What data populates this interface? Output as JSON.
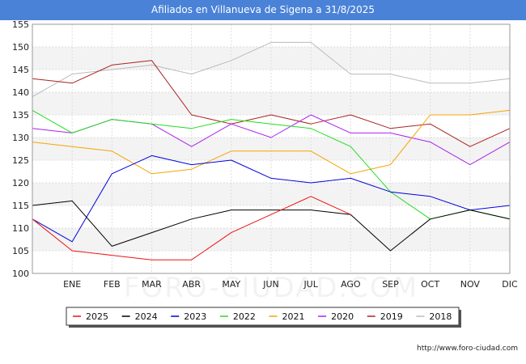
{
  "chart_data": {
    "type": "line",
    "title": "Afiliados en Villanueva de Sigena a 31/8/2025",
    "xlabel": "",
    "ylabel": "",
    "categories": [
      "",
      "ENE",
      "FEB",
      "MAR",
      "ABR",
      "MAY",
      "JUN",
      "JUL",
      "AGO",
      "SEP",
      "OCT",
      "NOV",
      "DIC"
    ],
    "ylim": [
      100,
      155
    ],
    "yticks": [
      100,
      105,
      110,
      115,
      120,
      125,
      130,
      135,
      140,
      145,
      150,
      155
    ],
    "grid": true,
    "legend_position": "bottom",
    "series": [
      {
        "name": "2025",
        "color": "#ee1111",
        "values": [
          112,
          105,
          104,
          103,
          103,
          109,
          113,
          117,
          113,
          null,
          null,
          null,
          null
        ]
      },
      {
        "name": "2024",
        "color": "#000000",
        "values": [
          115,
          116,
          106,
          109,
          112,
          114,
          114,
          114,
          113,
          105,
          112,
          114,
          112
        ]
      },
      {
        "name": "2023",
        "color": "#0000dd",
        "values": [
          112,
          107,
          122,
          126,
          124,
          125,
          121,
          120,
          121,
          118,
          117,
          114,
          115
        ]
      },
      {
        "name": "2022",
        "color": "#22dd22",
        "values": [
          136,
          131,
          134,
          133,
          132,
          134,
          133,
          132,
          128,
          118,
          112,
          114,
          112
        ]
      },
      {
        "name": "2021",
        "color": "#f5a500",
        "values": [
          129,
          128,
          127,
          122,
          123,
          127,
          127,
          127,
          122,
          124,
          135,
          135,
          136
        ]
      },
      {
        "name": "2020",
        "color": "#aa22ee",
        "values": [
          132,
          131,
          134,
          133,
          128,
          133,
          130,
          135,
          131,
          131,
          129,
          124,
          129
        ]
      },
      {
        "name": "2019",
        "color": "#aa2222",
        "values": [
          143,
          142,
          146,
          147,
          135,
          133,
          135,
          133,
          135,
          132,
          133,
          128,
          132
        ]
      },
      {
        "name": "2018",
        "color": "#bbbbbb",
        "values": [
          139,
          144,
          145,
          146,
          144,
          147,
          151,
          151,
          144,
          144,
          142,
          142,
          143
        ]
      }
    ]
  },
  "watermark": "FORO-CIUDAD.COM",
  "footer": "http://www.foro-ciudad.com"
}
